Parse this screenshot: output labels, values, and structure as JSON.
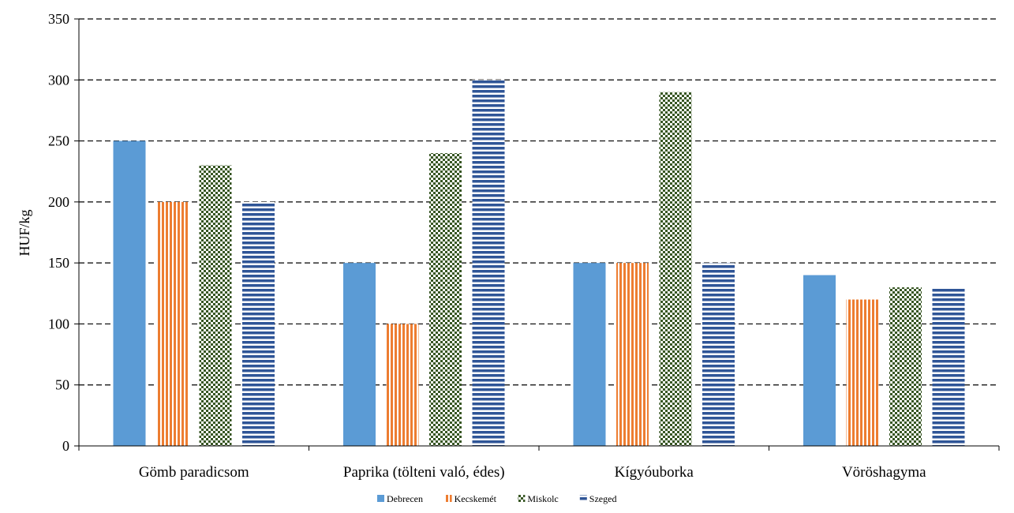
{
  "chart_data": {
    "type": "bar",
    "title": "",
    "xlabel": "",
    "ylabel": "HUF/kg",
    "ylim": [
      0,
      350
    ],
    "yticks": [
      0,
      50,
      100,
      150,
      200,
      250,
      300,
      350
    ],
    "grid": true,
    "legend_position": "bottom",
    "categories": [
      "Gömb paradicsom",
      "Paprika (tölteni való, édes)",
      "Kígyóuborka",
      "Vöröshagyma"
    ],
    "series": [
      {
        "name": "Debrecen",
        "values": [
          250,
          150,
          150,
          140
        ],
        "color": "#5b9bd5",
        "pattern": "solid"
      },
      {
        "name": "Kecskemét",
        "values": [
          200,
          100,
          150,
          120
        ],
        "color": "#ed7d31",
        "pattern": "vertical-stripes"
      },
      {
        "name": "Miskolc",
        "values": [
          230,
          240,
          290,
          130
        ],
        "color": "#375623",
        "pattern": "checker"
      },
      {
        "name": "Szeged",
        "values": [
          200,
          300,
          150,
          130
        ],
        "color": "#2f5597",
        "pattern": "horizontal-stripes"
      }
    ]
  }
}
